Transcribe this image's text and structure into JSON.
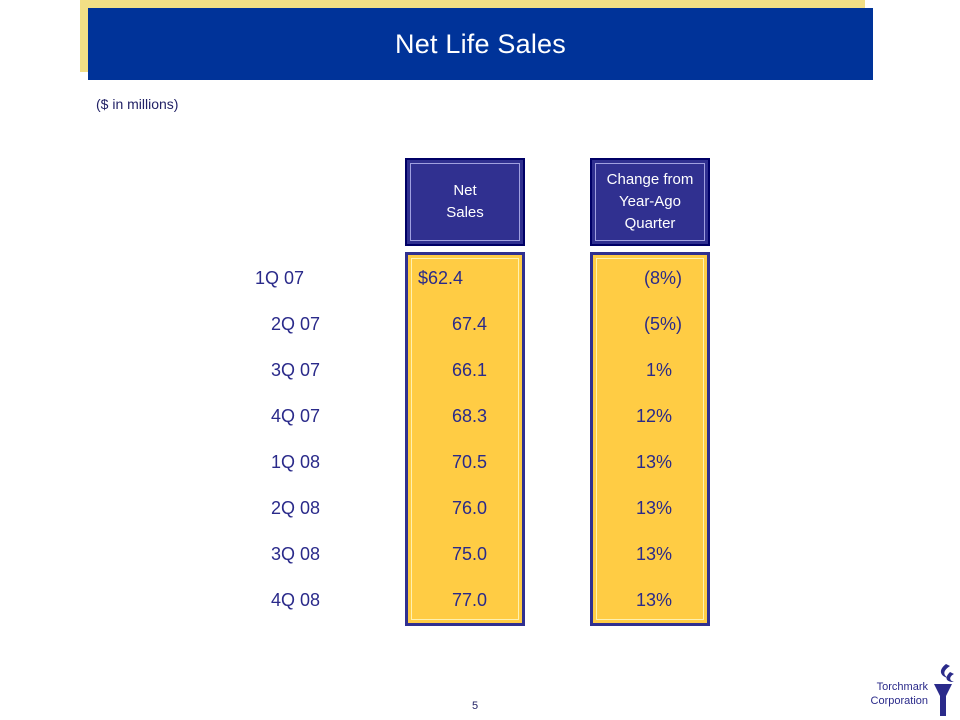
{
  "header": {
    "title": "Net Life Sales"
  },
  "subtitle": "($ in millions)",
  "columns": {
    "net_sales": "Net\nSales",
    "change": "Change from\nYear-Ago\nQuarter"
  },
  "rows": [
    {
      "quarter": "1Q 07",
      "net": "$62.4",
      "change": "(8%)"
    },
    {
      "quarter": "2Q 07",
      "net": "67.4",
      "change": "(5%)"
    },
    {
      "quarter": "3Q 07",
      "net": "66.1",
      "change": "1%"
    },
    {
      "quarter": "4Q 07",
      "net": "68.3",
      "change": "12%"
    },
    {
      "quarter": "1Q 08",
      "net": "70.5",
      "change": "13%"
    },
    {
      "quarter": "2Q 08",
      "net": "76.0",
      "change": "13%"
    },
    {
      "quarter": "3Q 08",
      "net": "75.0",
      "change": "13%"
    },
    {
      "quarter": "4Q 08",
      "net": "77.0",
      "change": "13%"
    }
  ],
  "footer": {
    "page_number": "5",
    "company": "Torchmark\nCorporation"
  },
  "colors": {
    "title_bar": "#003399",
    "accent_gold": "#ffcc44",
    "header_fill": "#303090",
    "text": "#2a2a8a"
  }
}
